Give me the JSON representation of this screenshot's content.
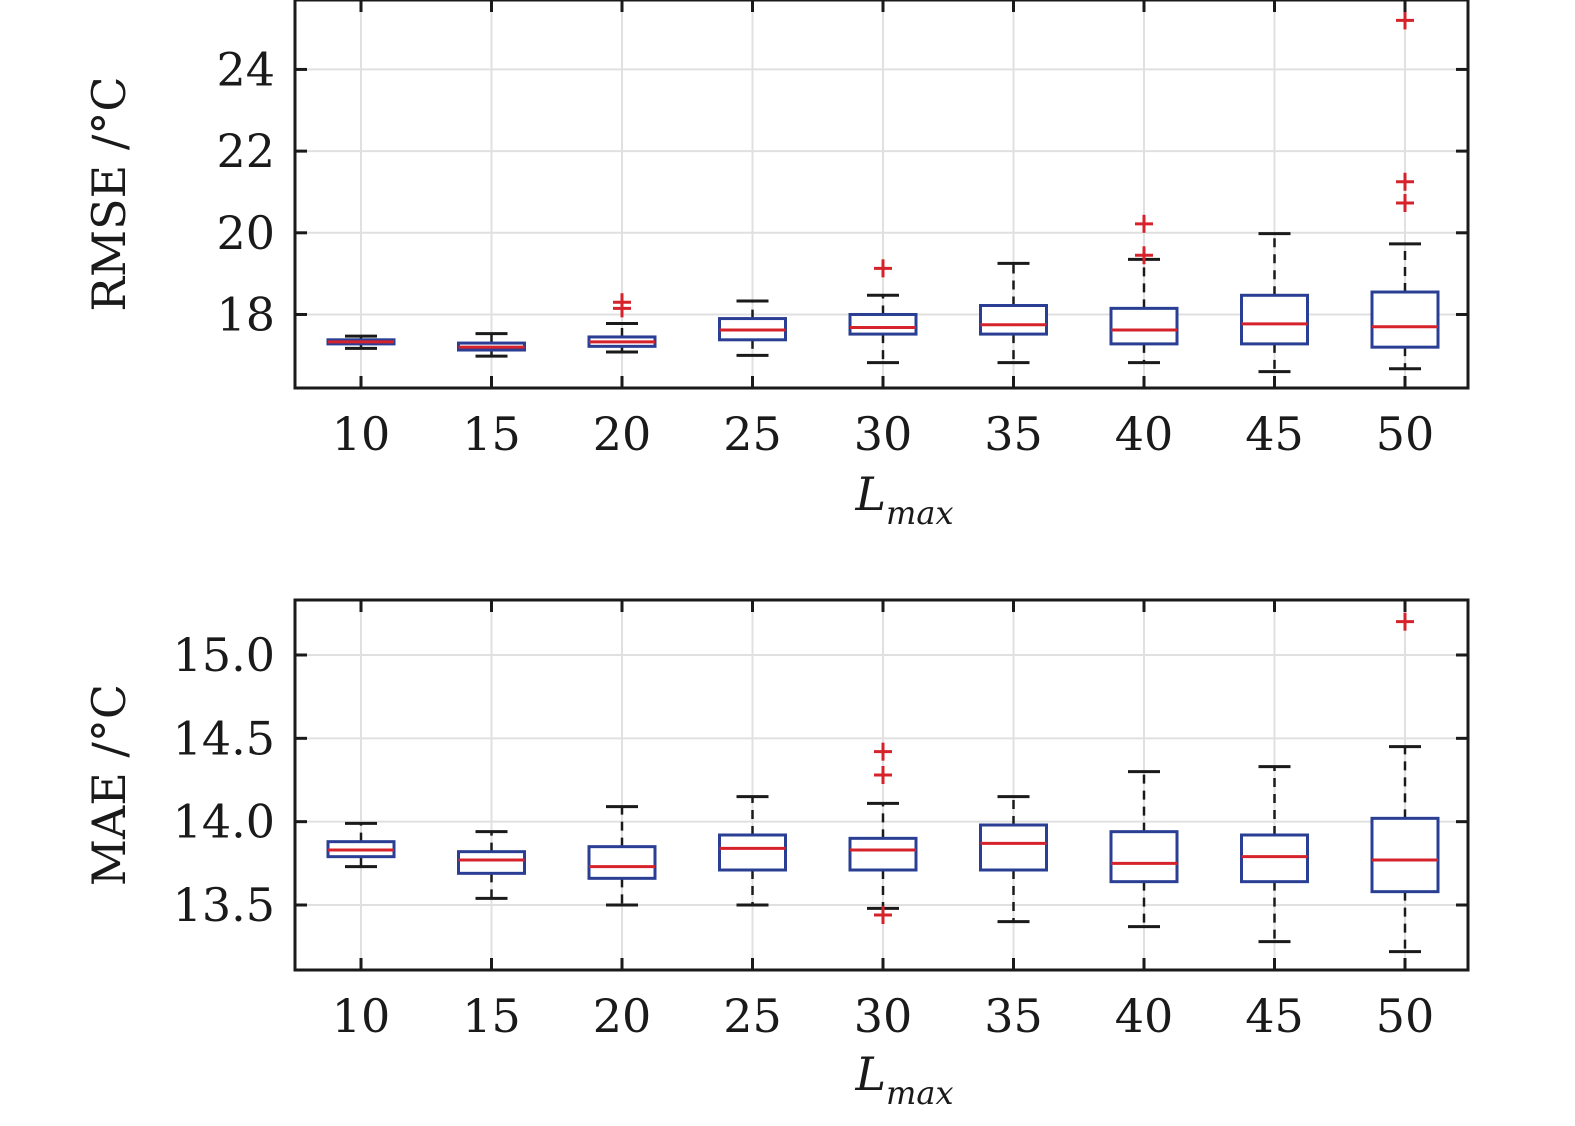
{
  "chart_data": [
    {
      "type": "box",
      "ylabel": "RMSE /°C",
      "xlabel_main": "L",
      "xlabel_sub": "max",
      "grid": true,
      "ylim": [
        16.2,
        25.7
      ],
      "yticks": [
        18,
        20,
        22,
        24
      ],
      "ytick_labels": [
        "18",
        "20",
        "22",
        "24"
      ],
      "box_color": "#2a3f94",
      "median_color": "#d6232b",
      "whisker_color": "#1a1a1a",
      "outlier_color": "#d6232b",
      "categories": [
        "10",
        "15",
        "20",
        "25",
        "30",
        "35",
        "40",
        "45",
        "50"
      ],
      "boxes": [
        {
          "low": 17.17,
          "q1": 17.28,
          "median": 17.33,
          "q3": 17.38,
          "high": 17.47,
          "outliers": []
        },
        {
          "low": 16.98,
          "q1": 17.13,
          "median": 17.2,
          "q3": 17.3,
          "high": 17.53,
          "outliers": []
        },
        {
          "low": 17.08,
          "q1": 17.22,
          "median": 17.33,
          "q3": 17.45,
          "high": 17.78,
          "outliers": [
            18.15,
            18.3
          ]
        },
        {
          "low": 17.0,
          "q1": 17.38,
          "median": 17.62,
          "q3": 17.9,
          "high": 18.33,
          "outliers": []
        },
        {
          "low": 16.82,
          "q1": 17.52,
          "median": 17.68,
          "q3": 18.0,
          "high": 18.47,
          "outliers": [
            19.13
          ]
        },
        {
          "low": 16.82,
          "q1": 17.52,
          "median": 17.75,
          "q3": 18.22,
          "high": 19.25,
          "outliers": []
        },
        {
          "low": 16.82,
          "q1": 17.28,
          "median": 17.62,
          "q3": 18.15,
          "high": 19.35,
          "outliers": [
            19.45,
            20.22
          ]
        },
        {
          "low": 16.6,
          "q1": 17.28,
          "median": 17.77,
          "q3": 18.47,
          "high": 19.98,
          "outliers": []
        },
        {
          "low": 16.67,
          "q1": 17.2,
          "median": 17.7,
          "q3": 18.55,
          "high": 19.73,
          "outliers": [
            20.73,
            21.25,
            25.2
          ]
        }
      ]
    },
    {
      "type": "box",
      "ylabel": "MAE /°C",
      "xlabel_main": "L",
      "xlabel_sub": "max",
      "grid": true,
      "ylim": [
        13.11,
        15.33
      ],
      "yticks": [
        13.5,
        14.0,
        14.5,
        15.0
      ],
      "ytick_labels": [
        "13.5",
        "14.0",
        "14.5",
        "15.0"
      ],
      "box_color": "#2a3f94",
      "median_color": "#d6232b",
      "whisker_color": "#1a1a1a",
      "outlier_color": "#d6232b",
      "categories": [
        "10",
        "15",
        "20",
        "25",
        "30",
        "35",
        "40",
        "45",
        "50"
      ],
      "boxes": [
        {
          "low": 13.73,
          "q1": 13.79,
          "median": 13.83,
          "q3": 13.88,
          "high": 13.99,
          "outliers": []
        },
        {
          "low": 13.54,
          "q1": 13.69,
          "median": 13.77,
          "q3": 13.82,
          "high": 13.94,
          "outliers": []
        },
        {
          "low": 13.5,
          "q1": 13.66,
          "median": 13.73,
          "q3": 13.85,
          "high": 14.09,
          "outliers": []
        },
        {
          "low": 13.5,
          "q1": 13.71,
          "median": 13.84,
          "q3": 13.92,
          "high": 14.15,
          "outliers": []
        },
        {
          "low": 13.48,
          "q1": 13.71,
          "median": 13.83,
          "q3": 13.9,
          "high": 14.11,
          "outliers": [
            13.44,
            14.28,
            14.42
          ]
        },
        {
          "low": 13.4,
          "q1": 13.71,
          "median": 13.87,
          "q3": 13.98,
          "high": 14.15,
          "outliers": []
        },
        {
          "low": 13.37,
          "q1": 13.64,
          "median": 13.75,
          "q3": 13.94,
          "high": 14.3,
          "outliers": []
        },
        {
          "low": 13.28,
          "q1": 13.64,
          "median": 13.79,
          "q3": 13.92,
          "high": 14.33,
          "outliers": []
        },
        {
          "low": 13.22,
          "q1": 13.58,
          "median": 13.77,
          "q3": 14.02,
          "high": 14.45,
          "outliers": [
            15.2
          ]
        }
      ]
    }
  ]
}
